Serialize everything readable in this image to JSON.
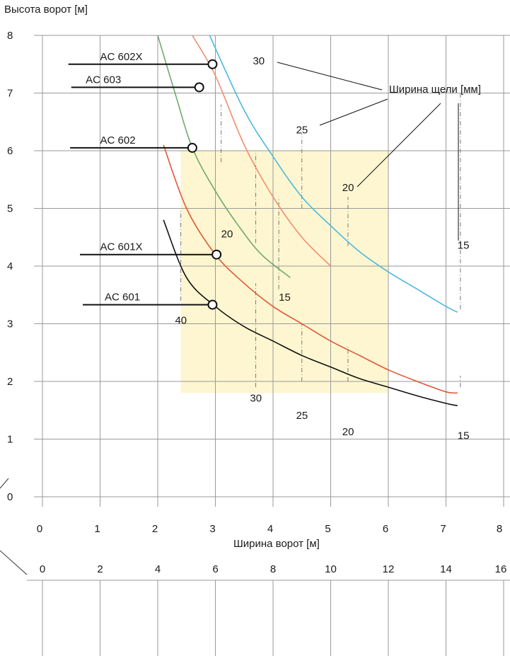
{
  "chart_data": [
    {
      "type": "line",
      "ylabel": "Высота ворот [м]",
      "xlabel": "Ширина ворот [м]",
      "xlim": [
        0,
        8
      ],
      "ylim": [
        0,
        8
      ],
      "x_ticks": [
        "0",
        "1",
        "2",
        "3",
        "4",
        "5",
        "6",
        "7",
        "8"
      ],
      "y_ticks": [
        "0",
        "1",
        "2",
        "3",
        "4",
        "5",
        "6",
        "7",
        "8"
      ],
      "grid": true,
      "shaded_region": {
        "x": [
          2.4,
          6.0
        ],
        "y": [
          1.8,
          6.0
        ],
        "color": "#fdf6d0"
      },
      "series": [
        {
          "color": "#111111",
          "x": [
            2.1,
            2.5,
            3.0,
            3.5,
            4.0,
            4.5,
            5.0,
            5.5,
            6.0,
            6.5,
            7.0,
            7.2
          ],
          "y": [
            4.8,
            3.8,
            3.3,
            2.95,
            2.7,
            2.45,
            2.25,
            2.05,
            1.9,
            1.75,
            1.62,
            1.58
          ]
        },
        {
          "color": "#e0583a",
          "x": [
            2.1,
            2.5,
            3.0,
            3.5,
            4.0,
            4.5,
            5.0,
            5.5,
            6.0,
            6.5,
            7.0,
            7.2
          ],
          "y": [
            6.1,
            5.0,
            4.2,
            3.7,
            3.3,
            3.0,
            2.7,
            2.45,
            2.2,
            2.0,
            1.82,
            1.8
          ]
        },
        {
          "color": "#6faa6f",
          "x": [
            2.0,
            2.3,
            2.6,
            3.0,
            3.4,
            3.8,
            4.3
          ],
          "y": [
            8.0,
            7.0,
            6.05,
            5.3,
            4.7,
            4.2,
            3.8
          ]
        },
        {
          "color": "#f08f6e",
          "x": [
            2.6,
            3.0,
            3.5,
            4.0,
            4.5,
            5.0
          ],
          "y": [
            8.0,
            7.3,
            6.1,
            5.2,
            4.5,
            4.0
          ]
        },
        {
          "color": "#4cb8dd",
          "x": [
            2.9,
            3.5,
            4.0,
            4.5,
            5.0,
            5.5,
            6.0,
            6.5,
            7.0,
            7.2
          ],
          "y": [
            8.0,
            6.7,
            5.9,
            5.2,
            4.7,
            4.25,
            3.9,
            3.6,
            3.3,
            3.2
          ]
        }
      ],
      "models": [
        {
          "label": "AC 602X",
          "x": 2.95,
          "y": 7.5
        },
        {
          "label": "AC 603",
          "x": 2.72,
          "y": 7.1
        },
        {
          "label": "AC 602",
          "x": 2.6,
          "y": 6.05
        },
        {
          "label": "AC 601X",
          "x": 3.02,
          "y": 4.2
        },
        {
          "label": "AC 601",
          "x": 2.95,
          "y": 3.33
        }
      ],
      "gap_title": "Ширина щели [мм]",
      "gap_labels": [
        "30",
        "25",
        "20",
        "15",
        "20",
        "15",
        "40",
        "30",
        "25",
        "20",
        "15"
      ]
    },
    {
      "type": "line",
      "x_ticks": [
        "0",
        "2",
        "4",
        "6",
        "8",
        "10",
        "12",
        "14",
        "16"
      ]
    }
  ]
}
